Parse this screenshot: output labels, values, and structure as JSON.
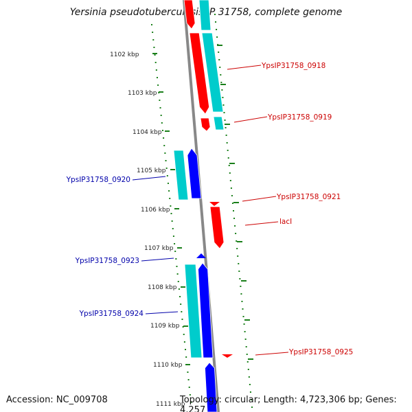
{
  "title": "Yersinia pseudotuberculosis IP 31758, complete genome",
  "footer": {
    "accession": "Accession: NC_009708",
    "summary": "Topology: circular; Length: 4,723,306 bp; Genes: 4,257"
  },
  "scale_labels": [
    "1102 kbp",
    "1103 kbp",
    "1104 kbp",
    "1105 kbp",
    "1106 kbp",
    "1107 kbp",
    "1108 kbp",
    "1109 kbp",
    "1110 kbp",
    "1111 kbp"
  ],
  "colors": {
    "forward_cds": "#ff0000",
    "reverse_cds": "#0000ff",
    "orf_cyan": "#00cccc",
    "forward_label": "#cc0000",
    "reverse_label": "#0000aa",
    "backbone": "#888888",
    "ticks": "#1a7f1a"
  },
  "genes": [
    {
      "label": "YpsIP31758_0918",
      "strand": "forward"
    },
    {
      "label": "YpsIP31758_0919",
      "strand": "forward"
    },
    {
      "label": "YpsIP31758_0920",
      "strand": "reverse"
    },
    {
      "label": "YpsIP31758_0921",
      "strand": "forward"
    },
    {
      "label": "lacI",
      "strand": "forward"
    },
    {
      "label": "YpsIP31758_0923",
      "strand": "reverse"
    },
    {
      "label": "YpsIP31758_0924",
      "strand": "reverse"
    },
    {
      "label": "YpsIP31758_0925",
      "strand": "forward"
    }
  ]
}
